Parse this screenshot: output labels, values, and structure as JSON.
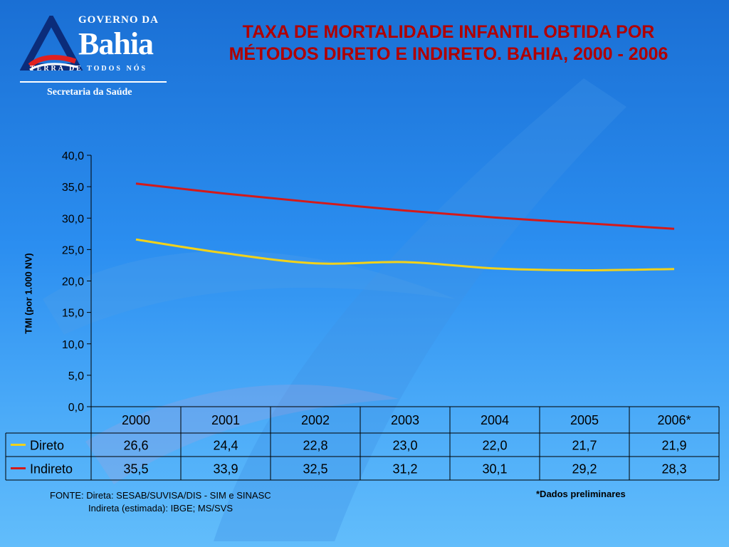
{
  "logo": {
    "top_text": "GOVERNO DA",
    "name": "Bahia",
    "tagline": "TERRA DE TODOS NÓS",
    "subtitle": "Secretaria da Saúde"
  },
  "title_lines": [
    "TAXA DE MORTALIDADE INFANTIL OBTIDA POR",
    "MÉTODOS DIRETO E INDIRETO. BAHIA, 2000 - 2006"
  ],
  "colors": {
    "title": "#b00000",
    "direto": "#f2d21a",
    "indireto": "#d41a1a",
    "background_top": "#1a6fd4",
    "background_bottom": "#62bdfb"
  },
  "chart_data": {
    "type": "line",
    "title": "TAXA DE MORTALIDADE INFANTIL OBTIDA POR MÉTODOS DIRETO E INDIRETO. BAHIA, 2000 - 2006",
    "ylabel": "TMI (por 1.000 NV)",
    "xlabel": "",
    "categories": [
      "2000",
      "2001",
      "2002",
      "2003",
      "2004",
      "2005",
      "2006*"
    ],
    "ylim": [
      0,
      40
    ],
    "yticks": [
      "0,0",
      "5,0",
      "10,0",
      "15,0",
      "20,0",
      "25,0",
      "30,0",
      "35,0",
      "40,0"
    ],
    "grid": false,
    "legend": "data-table-bottom",
    "series": [
      {
        "name": "Direto",
        "color": "#f2d21a",
        "values": [
          26.6,
          24.4,
          22.8,
          23.0,
          22.0,
          21.7,
          21.9
        ],
        "labels": [
          "26,6",
          "24,4",
          "22,8",
          "23,0",
          "22,0",
          "21,7",
          "21,9"
        ]
      },
      {
        "name": "Indireto",
        "color": "#d41a1a",
        "values": [
          35.5,
          33.9,
          32.5,
          31.2,
          30.1,
          29.2,
          28.3
        ],
        "labels": [
          "35,5",
          "33,9",
          "32,5",
          "31,2",
          "30,1",
          "29,2",
          "28,3"
        ]
      }
    ]
  },
  "source": {
    "line1": "FONTE: Direta: SESAB/SUVISA/DIS - SIM e SINASC",
    "line2": "Indireta (estimada): IBGE; MS/SVS"
  },
  "footnote": "*Dados preliminares"
}
